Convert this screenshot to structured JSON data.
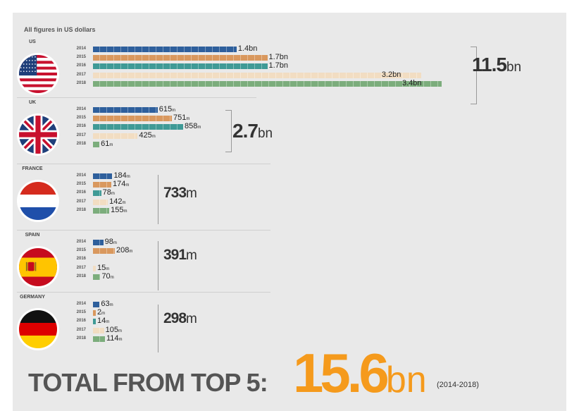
{
  "note": "All figures in US dollars",
  "colors": {
    "2014": "#2e5f9c",
    "2015": "#d9985e",
    "2016": "#3f9a96",
    "2017": "#f2ddc2",
    "2018": "#7cad7c",
    "accent": "#f59a1c"
  },
  "chart_data": {
    "type": "bar",
    "orientation": "horizontal",
    "unit": "USD",
    "years": [
      "2014",
      "2015",
      "2016",
      "2017",
      "2018"
    ],
    "countries": [
      {
        "name": "US",
        "flag": "us-flag",
        "labels": [
          "1.4bn",
          "1.7bn",
          "1.7bn",
          "3.2bn",
          "3.4bn"
        ],
        "values_musd": [
          1400,
          1700,
          1700,
          3200,
          3400
        ],
        "total_value": "11.5",
        "total_unit": "bn"
      },
      {
        "name": "UK",
        "flag": "uk-flag",
        "labels": [
          "615",
          "751",
          "858",
          "425",
          "61"
        ],
        "units": [
          "m",
          "m",
          "m",
          "m",
          "m"
        ],
        "values_musd": [
          615,
          751,
          858,
          425,
          61
        ],
        "total_value": "2.7",
        "total_unit": "bn"
      },
      {
        "name": "FRANCE",
        "flag": "france-flag",
        "labels": [
          "184",
          "174",
          "78",
          "142",
          "155"
        ],
        "units": [
          "m",
          "m",
          "m",
          "m",
          "m"
        ],
        "values_musd": [
          184,
          174,
          78,
          142,
          155
        ],
        "total_value": "733",
        "total_unit": "m"
      },
      {
        "name": "SPAIN",
        "flag": "spain-flag",
        "labels": [
          "98",
          "208",
          "",
          "15",
          "70"
        ],
        "units": [
          "m",
          "m",
          "",
          "m",
          "m"
        ],
        "values_musd": [
          98,
          208,
          0,
          15,
          70
        ],
        "total_value": "391",
        "total_unit": "m"
      },
      {
        "name": "GERMANY",
        "flag": "germany-flag",
        "labels": [
          "63",
          "2",
          "14",
          "105",
          "114"
        ],
        "units": [
          "m",
          "m",
          "m",
          "m",
          "m"
        ],
        "values_musd": [
          63,
          2,
          14,
          105,
          114
        ],
        "total_value": "298",
        "total_unit": "m"
      }
    ],
    "grand_total": {
      "label": "TOTAL FROM TOP 5:",
      "value": "15.6",
      "unit": "bn",
      "period": "(2014-2018)"
    }
  }
}
